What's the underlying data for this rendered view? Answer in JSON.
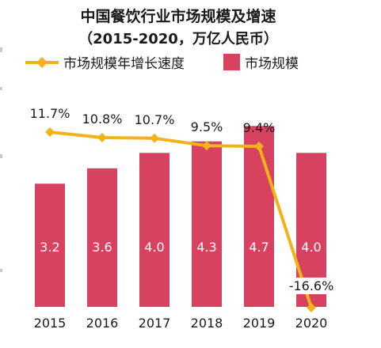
{
  "colors": {
    "bar": "#d6425f",
    "line": "#f2b21a",
    "bar_label": "#ffffff",
    "text": "#1a1a1a"
  },
  "chart_data": {
    "type": "bar",
    "title": "中国餐饮行业市场规模及增速",
    "subtitle": "（2015-2020，万亿人民币）",
    "categories": [
      "2015",
      "2016",
      "2017",
      "2018",
      "2019",
      "2020"
    ],
    "series": [
      {
        "name": "市场规模",
        "type": "bar",
        "values": [
          3.2,
          3.6,
          4.0,
          4.3,
          4.7,
          4.0
        ],
        "labels": [
          "3.2",
          "3.6",
          "4.0",
          "4.3",
          "4.7",
          "4.0"
        ]
      },
      {
        "name": "市场规模年增长速度",
        "type": "line",
        "values": [
          11.7,
          10.8,
          10.7,
          9.5,
          9.4,
          -16.6
        ],
        "labels": [
          "11.7%",
          "10.8%",
          "10.7%",
          "9.5%",
          "9.4%",
          "-16.6%"
        ]
      }
    ],
    "ylim_bar": [
      0,
      6.0
    ],
    "ylim_line": [
      -17.5,
      21
    ],
    "legend": "top",
    "grid": false
  }
}
